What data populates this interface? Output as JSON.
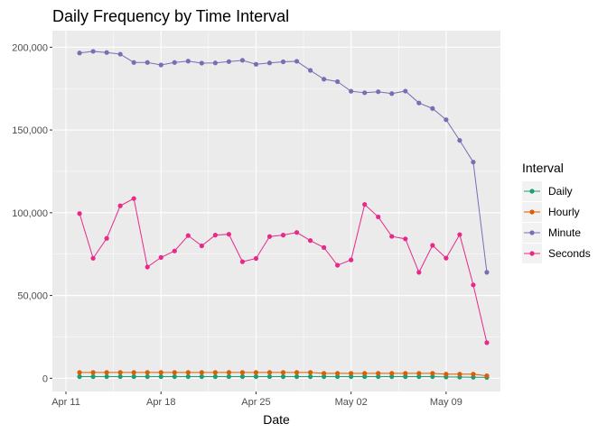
{
  "chart_data": {
    "type": "line",
    "title": "Daily Frequency by Time Interval",
    "xlabel": "Date",
    "ylabel": "",
    "x": [
      "2021-04-12",
      "2021-04-13",
      "2021-04-14",
      "2021-04-15",
      "2021-04-16",
      "2021-04-17",
      "2021-04-18",
      "2021-04-19",
      "2021-04-20",
      "2021-04-21",
      "2021-04-22",
      "2021-04-23",
      "2021-04-24",
      "2021-04-25",
      "2021-04-26",
      "2021-04-27",
      "2021-04-28",
      "2021-04-29",
      "2021-04-30",
      "2021-05-01",
      "2021-05-02",
      "2021-05-03",
      "2021-05-04",
      "2021-05-05",
      "2021-05-06",
      "2021-05-07",
      "2021-05-08",
      "2021-05-09",
      "2021-05-10",
      "2021-05-11",
      "2021-05-12"
    ],
    "x_ticks": [
      {
        "date": "2021-04-11",
        "label": "Apr 11"
      },
      {
        "date": "2021-04-18",
        "label": "Apr 18"
      },
      {
        "date": "2021-04-25",
        "label": "Apr 25"
      },
      {
        "date": "2021-05-02",
        "label": "May 02"
      },
      {
        "date": "2021-05-09",
        "label": "May 09"
      }
    ],
    "xlim": [
      "2021-04-10",
      "2021-05-13"
    ],
    "y_ticks": [
      {
        "value": 0,
        "label": "0"
      },
      {
        "value": 50000,
        "label": "50,000"
      },
      {
        "value": 100000,
        "label": "100,000"
      },
      {
        "value": 150000,
        "label": "150,000"
      },
      {
        "value": 200000,
        "label": "200,000"
      }
    ],
    "ylim": [
      -8000,
      210000
    ],
    "grid": true,
    "legend_title": "Interval",
    "legend_position": "right",
    "background": "#ebebeb",
    "series": [
      {
        "name": "Daily",
        "color": "#1b9e77",
        "values": [
          1000,
          1000,
          1000,
          1000,
          1000,
          1000,
          1000,
          1000,
          1000,
          1000,
          1000,
          1000,
          1000,
          1000,
          1000,
          1000,
          1000,
          1000,
          1000,
          1000,
          1000,
          1000,
          1000,
          1000,
          1000,
          1000,
          1000,
          800,
          700,
          600,
          500
        ]
      },
      {
        "name": "Hourly",
        "color": "#d95f02",
        "values": [
          3500,
          3500,
          3500,
          3500,
          3500,
          3500,
          3500,
          3500,
          3500,
          3500,
          3500,
          3500,
          3500,
          3500,
          3500,
          3500,
          3500,
          3500,
          3000,
          3000,
          3000,
          3000,
          3000,
          3000,
          3000,
          3000,
          3000,
          2500,
          2500,
          2500,
          1500
        ]
      },
      {
        "name": "Minute",
        "color": "#7570b3",
        "values": [
          196500,
          197500,
          196800,
          195800,
          190800,
          190800,
          189300,
          190800,
          191600,
          190400,
          190500,
          191300,
          192100,
          189700,
          190500,
          191200,
          191500,
          186000,
          180700,
          179200,
          173400,
          172500,
          173100,
          172000,
          173500,
          166300,
          163000,
          156200,
          143700,
          130600,
          64000
        ]
      },
      {
        "name": "Seconds",
        "color": "#e7298a",
        "values": [
          99500,
          72500,
          84500,
          104200,
          108600,
          67200,
          73000,
          76900,
          86200,
          80000,
          86500,
          87000,
          70400,
          72400,
          85600,
          86500,
          88100,
          83200,
          79000,
          68300,
          71500,
          105000,
          97500,
          85700,
          84200,
          64000,
          80300,
          72600,
          86800,
          56400,
          21500
        ]
      }
    ]
  }
}
